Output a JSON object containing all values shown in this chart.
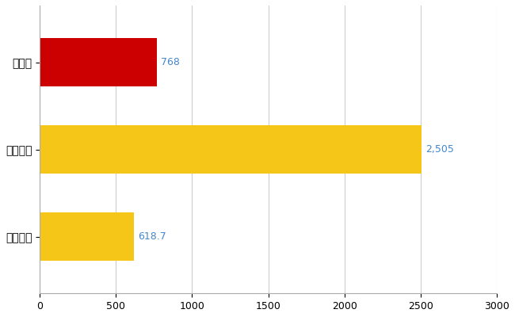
{
  "categories": [
    "広島県",
    "全国最大",
    "全国平均"
  ],
  "values": [
    768,
    2505,
    618.7
  ],
  "bar_colors": [
    "#cc0000",
    "#f5c518",
    "#f5c518"
  ],
  "value_labels": [
    "768",
    "2,505",
    "618.7"
  ],
  "label_color": "#4488cc",
  "label_fontsize": 9,
  "bar_height": 0.55,
  "xlim": [
    0,
    3000
  ],
  "xticks": [
    0,
    500,
    1000,
    1500,
    2000,
    2500,
    3000
  ],
  "background_color": "#ffffff",
  "grid_color": "#cccccc",
  "ytick_fontsize": 10,
  "xtick_fontsize": 9
}
